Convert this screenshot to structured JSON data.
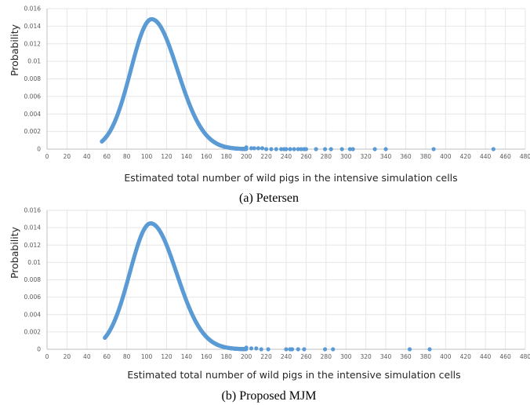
{
  "chart_data": [
    {
      "type": "scatter",
      "panel": "a",
      "caption": "(a) Petersen",
      "xlabel": "Estimated total number of wild pigs in the intensive simulation cells",
      "ylabel": "Probability",
      "xlim": [
        0,
        480
      ],
      "ylim": [
        0,
        0.016
      ],
      "xticks": [
        0,
        20,
        40,
        60,
        80,
        100,
        120,
        140,
        160,
        180,
        200,
        220,
        240,
        260,
        280,
        300,
        320,
        340,
        360,
        380,
        400,
        420,
        440,
        460,
        480
      ],
      "yticks": [
        0,
        0.002,
        0.004,
        0.006,
        0.008,
        0.01,
        0.012,
        0.014,
        0.016
      ],
      "grid": true,
      "color": "#5b9bd5",
      "curve": {
        "x_start": 55,
        "x_end": 200,
        "peak_x": 105,
        "peak_y": 0.0148
      },
      "points": [
        [
          200,
          0.0002
        ],
        [
          205,
          0.0001
        ],
        [
          208,
          0.0001
        ],
        [
          212,
          0.0001
        ],
        [
          216,
          0.0001
        ],
        [
          220,
          0.0
        ],
        [
          225,
          0.0
        ],
        [
          230,
          0.0
        ],
        [
          235,
          0.0
        ],
        [
          238,
          0.0
        ],
        [
          240,
          0.0
        ],
        [
          244,
          0.0
        ],
        [
          248,
          0.0
        ],
        [
          252,
          0.0
        ],
        [
          255,
          0.0
        ],
        [
          258,
          0.0
        ],
        [
          260,
          0.0
        ],
        [
          270,
          0.0
        ],
        [
          279,
          0.0
        ],
        [
          285,
          0.0
        ],
        [
          296,
          0.0
        ],
        [
          304,
          0.0
        ],
        [
          307,
          0.0
        ],
        [
          329,
          0.0
        ],
        [
          340,
          0.0
        ],
        [
          388,
          0.0
        ],
        [
          448,
          0.0
        ]
      ]
    },
    {
      "type": "scatter",
      "panel": "b",
      "caption": "(b) Proposed MJM",
      "xlabel": "Estimated total number of wild pigs in the intensive simulation cells",
      "ylabel": "Probability",
      "xlim": [
        0,
        480
      ],
      "ylim": [
        0,
        0.016
      ],
      "xticks": [
        0,
        20,
        40,
        60,
        80,
        100,
        120,
        140,
        160,
        180,
        200,
        220,
        240,
        260,
        280,
        300,
        320,
        340,
        360,
        380,
        400,
        420,
        440,
        460,
        480
      ],
      "yticks": [
        0,
        0.002,
        0.004,
        0.006,
        0.008,
        0.01,
        0.012,
        0.014,
        0.016
      ],
      "grid": true,
      "color": "#5b9bd5",
      "curve": {
        "x_start": 58,
        "x_end": 200,
        "peak_x": 104,
        "peak_y": 0.0145
      },
      "points": [
        [
          200,
          0.0002
        ],
        [
          205,
          0.0001
        ],
        [
          210,
          0.0001
        ],
        [
          215,
          0.0
        ],
        [
          222,
          0.0
        ],
        [
          240,
          0.0
        ],
        [
          244,
          0.0
        ],
        [
          246,
          0.0
        ],
        [
          252,
          0.0
        ],
        [
          258,
          0.0
        ],
        [
          279,
          0.0
        ],
        [
          287,
          0.0
        ],
        [
          364,
          0.0
        ],
        [
          384,
          0.0
        ]
      ]
    }
  ]
}
